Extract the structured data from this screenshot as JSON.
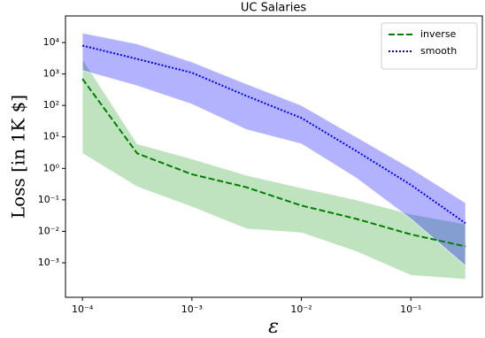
{
  "chart_data": {
    "type": "line",
    "title": "UC Salaries",
    "xlabel": "ε",
    "ylabel": "Loss [in 1K $]",
    "xscale": "log",
    "yscale": "log",
    "x": [
      0.0001,
      0.000316,
      0.001,
      0.00316,
      0.01,
      0.0316,
      0.1,
      0.316
    ],
    "series": [
      {
        "name": "inverse",
        "color": "#2ca02c",
        "line_color": "green",
        "linestyle": "dashed",
        "values": [
          700,
          3,
          0.65,
          0.25,
          0.066,
          0.025,
          0.008,
          0.0033
        ],
        "upper": [
          3000,
          6,
          2,
          0.6,
          0.24,
          0.1,
          0.035,
          0.017
        ],
        "lower": [
          3,
          0.26,
          0.06,
          0.012,
          0.009,
          0.0023,
          0.0004,
          0.0003
        ]
      },
      {
        "name": "smooth",
        "color": "#0000ff",
        "line_color": "blue",
        "linestyle": "dotted",
        "values": [
          8000,
          3000,
          1100,
          200,
          40,
          3.6,
          0.3,
          0.018
        ],
        "upper": [
          20000,
          9000,
          2400,
          480,
          100,
          10,
          1,
          0.08
        ],
        "lower": [
          1300,
          420,
          110,
          17,
          6,
          0.5,
          0.025,
          0.0008
        ]
      }
    ],
    "xlim": [
      7e-05,
      0.45
    ],
    "ylim": [
      8e-05,
      70000
    ],
    "xticks": [
      {
        "value": 0.0001,
        "label": "10⁻⁴"
      },
      {
        "value": 0.001,
        "label": "10⁻³"
      },
      {
        "value": 0.01,
        "label": "10⁻²"
      },
      {
        "value": 0.1,
        "label": "10⁻¹"
      }
    ],
    "yticks": [
      {
        "value": 0.001,
        "label": "10⁻³"
      },
      {
        "value": 0.01,
        "label": "10⁻²"
      },
      {
        "value": 0.1,
        "label": "10⁻¹"
      },
      {
        "value": 1,
        "label": "10⁰"
      },
      {
        "value": 10,
        "label": "10¹"
      },
      {
        "value": 100,
        "label": "10²"
      },
      {
        "value": 1000,
        "label": "10³"
      },
      {
        "value": 10000,
        "label": "10⁴"
      }
    ],
    "legend": "upper right",
    "grid": false
  }
}
